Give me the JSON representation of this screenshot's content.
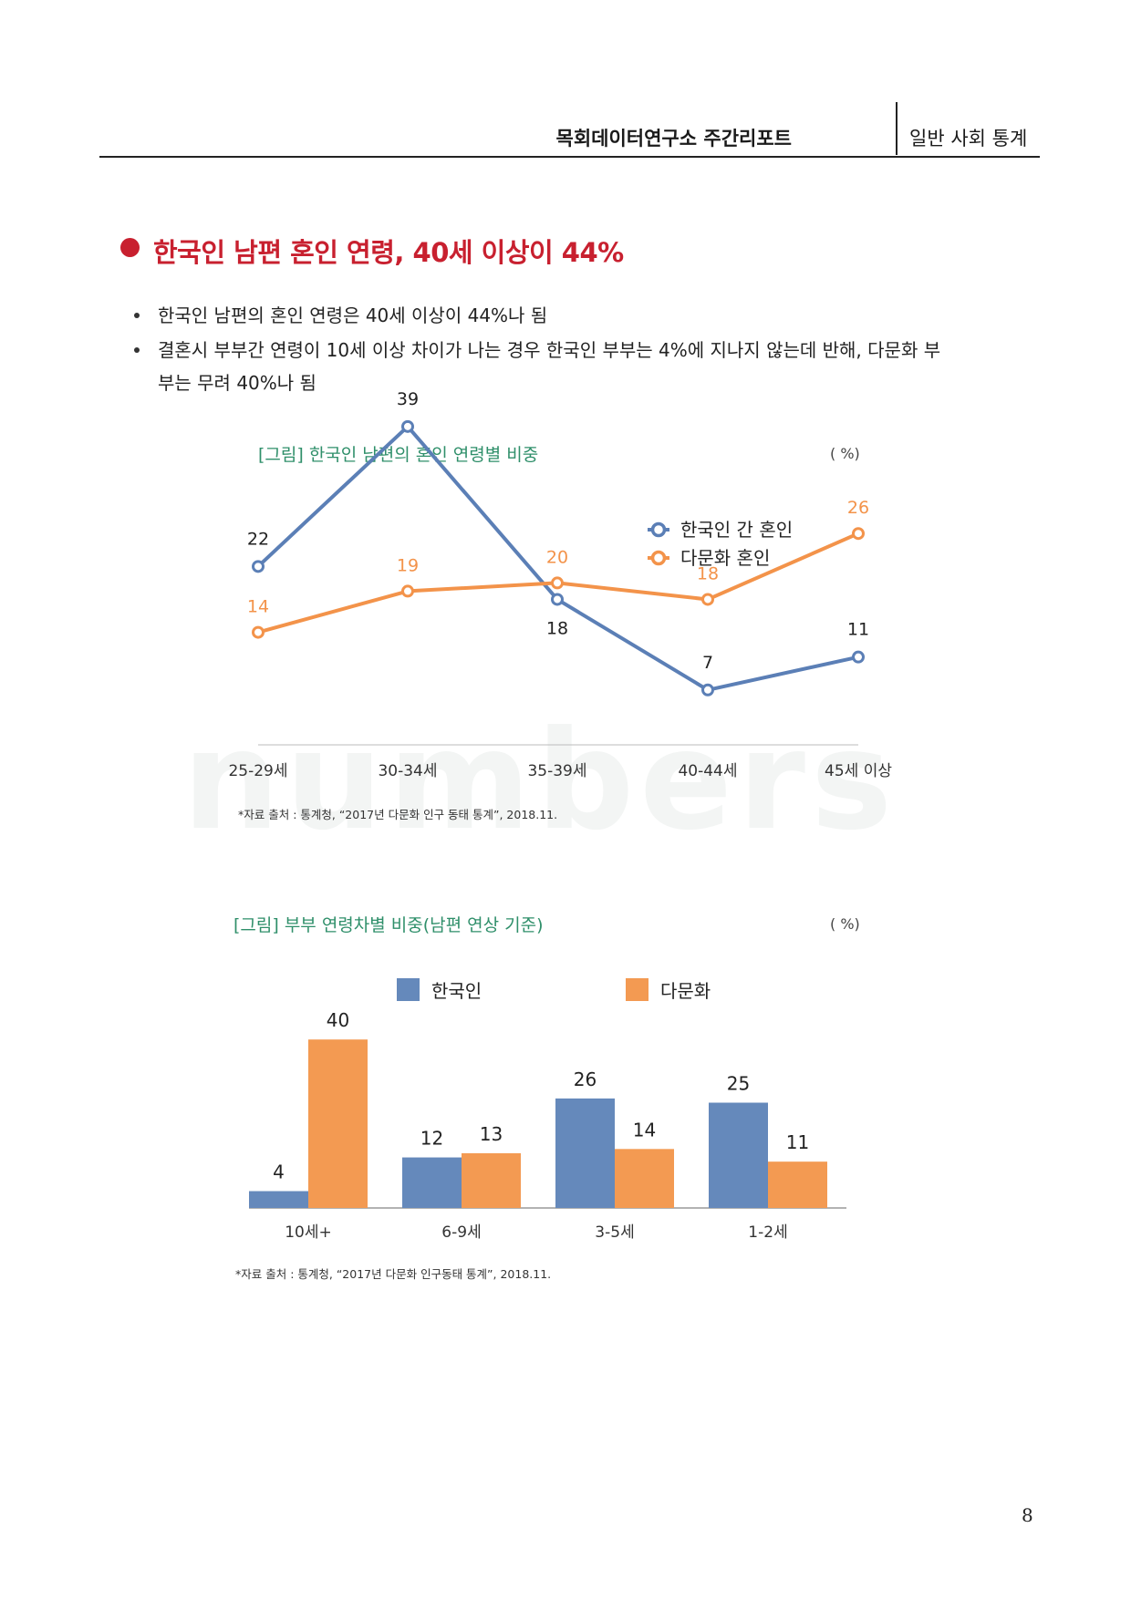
{
  "header": {
    "report_name": "목회데이터연구소 주간리포트",
    "section": "일반 사회 통계"
  },
  "title": "한국인 남편 혼인 연령, 40세 이상이 44%",
  "bullets": [
    "한국인 남편의 혼인 연령은 40세 이상이 44%나 됨",
    "결혼시 부부간 연령이 10세 이상 차이가 나는 경우 한국인 부부는 4%에 지나지 않는데 반해, 다문화 부부는 무려 40%나 됨"
  ],
  "watermark": "numbers",
  "figure1": {
    "title": "[그림] 한국인 남편의 혼인 연령별 비중",
    "unit": "( %)",
    "source": "*자료 출처 : 통계청, “2017년 다문화 인구 동태 통계”, 2018.11."
  },
  "figure2": {
    "title": "[그림] 부부 연령차별 비중(남편 연상 기준)",
    "unit": "( %)",
    "source": "*자료 출처 : 통계청, “2017년 다문화 인구동태 통계”, 2018.11."
  },
  "page_number": "8",
  "chart_data": [
    {
      "type": "line",
      "title": "[그림] 한국인 남편의 혼인 연령별 비중",
      "categories": [
        "25-29세",
        "30-34세",
        "35-39세",
        "40-44세",
        "45세 이상"
      ],
      "series": [
        {
          "name": "한국인 간 혼인",
          "values": [
            22,
            39,
            18,
            7,
            11
          ],
          "color": "#5b7fb6"
        },
        {
          "name": "다문화 혼인",
          "values": [
            14,
            19,
            20,
            18,
            26
          ],
          "color": "#f3934a"
        }
      ],
      "ylim": [
        0,
        45
      ],
      "legend": "top-right",
      "grid": false
    },
    {
      "type": "bar",
      "title": "[그림] 부부 연령차별 비중(남편 연상 기준)",
      "categories": [
        "10세+",
        "6-9세",
        "3-5세",
        "1-2세"
      ],
      "series": [
        {
          "name": "한국인",
          "values": [
            4,
            12,
            26,
            25
          ],
          "color": "#6589bb"
        },
        {
          "name": "다문화",
          "values": [
            40,
            13,
            14,
            11
          ],
          "color": "#f39a52"
        }
      ],
      "ylim": [
        0,
        40
      ],
      "legend": "top",
      "grid": false
    }
  ]
}
